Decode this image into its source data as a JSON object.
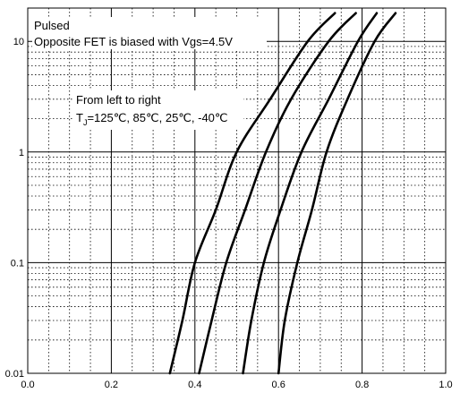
{
  "chart_data": {
    "type": "line",
    "title": "",
    "xlabel": "",
    "ylabel": "",
    "x_scale": "linear",
    "y_scale": "log",
    "xlim": [
      0.0,
      1.0
    ],
    "ylim": [
      0.01,
      20
    ],
    "x_ticks": [
      "0.0",
      "0.2",
      "0.4",
      "0.6",
      "0.8",
      "1.0"
    ],
    "y_ticks": [
      "0.01",
      "0.1",
      "1",
      "10"
    ],
    "grid": "major solid, minor dotted",
    "annotations": {
      "line1": "Pulsed",
      "line2": "Opposite FET is biased with Vgs=4.5V",
      "line3": "From left to right",
      "line4_prefix": "T",
      "line4_sub": "J",
      "line4_rest": "=125℃, 85℃, 25℃, -40℃"
    },
    "series": [
      {
        "color": "#000000",
        "points": [
          [
            0.34,
            0.01
          ],
          [
            0.37,
            0.03
          ],
          [
            0.4,
            0.1
          ],
          [
            0.45,
            0.3
          ],
          [
            0.5,
            1
          ],
          [
            0.58,
            3
          ],
          [
            0.67,
            10
          ],
          [
            0.735,
            18
          ]
        ]
      },
      {
        "color": "#000000",
        "points": [
          [
            0.41,
            0.01
          ],
          [
            0.44,
            0.03
          ],
          [
            0.475,
            0.1
          ],
          [
            0.52,
            0.3
          ],
          [
            0.57,
            1
          ],
          [
            0.63,
            3
          ],
          [
            0.72,
            10
          ],
          [
            0.785,
            18
          ]
        ]
      },
      {
        "color": "#000000",
        "points": [
          [
            0.515,
            0.01
          ],
          [
            0.535,
            0.03
          ],
          [
            0.565,
            0.1
          ],
          [
            0.605,
            0.3
          ],
          [
            0.655,
            1
          ],
          [
            0.72,
            3
          ],
          [
            0.79,
            10
          ],
          [
            0.835,
            18
          ]
        ]
      },
      {
        "color": "#000000",
        "points": [
          [
            0.6,
            0.01
          ],
          [
            0.615,
            0.03
          ],
          [
            0.645,
            0.1
          ],
          [
            0.68,
            0.3
          ],
          [
            0.715,
            1
          ],
          [
            0.765,
            3
          ],
          [
            0.83,
            10
          ],
          [
            0.88,
            18
          ]
        ]
      }
    ]
  }
}
